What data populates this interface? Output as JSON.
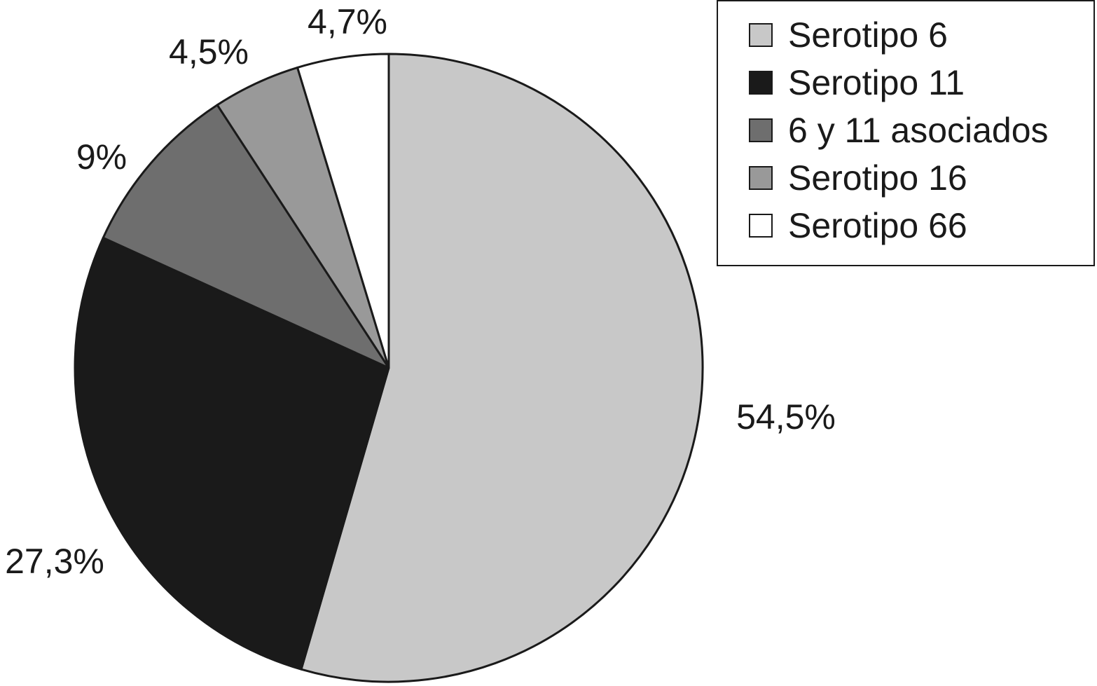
{
  "chart_data": {
    "type": "pie",
    "categories": [
      "Serotipo 6",
      "Serotipo 11",
      "6 y 11 asociados",
      "Serotipo 16",
      "Serotipo 66"
    ],
    "values": [
      54.5,
      27.3,
      9,
      4.5,
      4.7
    ],
    "labels": [
      "54,5%",
      "27,3%",
      "9%",
      "4,5%",
      "4,7%"
    ],
    "colors": [
      "#c8c8c8",
      "#1a1a1a",
      "#6e6e6e",
      "#999999",
      "#ffffff"
    ],
    "start_angle": "12 o'clock",
    "direction": "clockwise",
    "legend_position": "top-right"
  }
}
